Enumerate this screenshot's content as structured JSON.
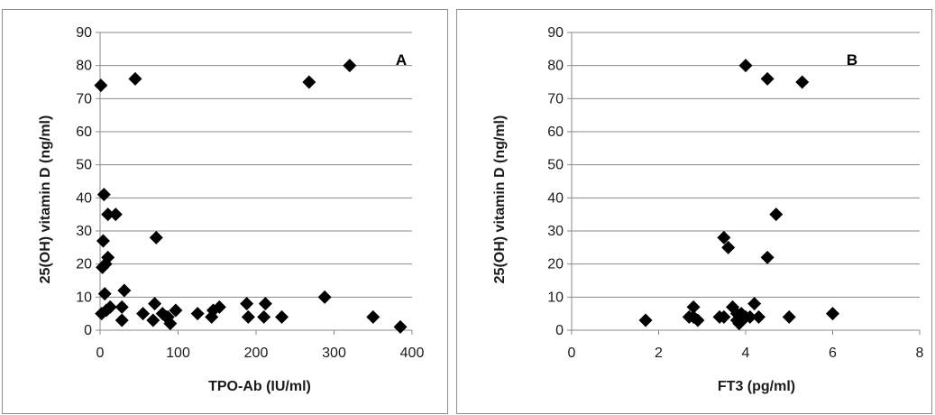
{
  "chart_data": [
    {
      "type": "scatter",
      "title": "",
      "panel_label": "A",
      "xlabel": "TPO-Ab (IU/ml)",
      "ylabel": "25(OH) vitamin D (ng/ml)",
      "xlim": [
        0,
        400
      ],
      "ylim": [
        0,
        90
      ],
      "xticks": [
        0,
        100,
        200,
        300,
        400
      ],
      "yticks": [
        0,
        10,
        20,
        30,
        40,
        50,
        60,
        70,
        80,
        90
      ],
      "grid": "horizontal",
      "marker": "diamond",
      "marker_color": "#000000",
      "series": [
        {
          "x": [
            1,
            2,
            3,
            4,
            5,
            6,
            7,
            8,
            10,
            10,
            13,
            20,
            28,
            28,
            31,
            45,
            55,
            68,
            70,
            72,
            80,
            85,
            87,
            90,
            97,
            125,
            143,
            145,
            153,
            188,
            190,
            210,
            212,
            233,
            268,
            288,
            320,
            350,
            385
          ],
          "y": [
            74,
            5,
            19,
            27,
            41,
            11,
            20,
            6,
            35,
            22,
            7,
            35,
            3,
            7,
            12,
            76,
            5,
            3,
            8,
            28,
            5,
            4,
            4,
            2,
            6,
            5,
            4,
            6,
            7,
            8,
            4,
            4,
            8,
            4,
            75,
            10,
            80,
            4,
            1
          ]
        }
      ]
    },
    {
      "type": "scatter",
      "title": "",
      "panel_label": "B",
      "xlabel": "FT3 (pg/ml)",
      "ylabel": "25(OH) vitamin D (ng/ml)",
      "xlim": [
        0,
        8
      ],
      "ylim": [
        0,
        90
      ],
      "xticks": [
        0,
        2,
        4,
        6,
        8
      ],
      "yticks": [
        0,
        10,
        20,
        30,
        40,
        50,
        60,
        70,
        80,
        90
      ],
      "grid": "horizontal",
      "marker": "diamond",
      "marker_color": "#000000",
      "series": [
        {
          "x": [
            1.7,
            2.7,
            2.8,
            2.8,
            2.9,
            3.4,
            3.5,
            3.5,
            3.6,
            3.7,
            3.8,
            3.8,
            3.85,
            3.9,
            4.0,
            4.0,
            4.1,
            4.2,
            4.3,
            4.5,
            4.5,
            4.7,
            5.0,
            5.3,
            6.0
          ],
          "y": [
            3,
            4,
            7,
            4,
            3,
            4,
            4,
            28,
            25,
            7,
            5,
            3,
            2,
            5,
            4,
            80,
            4,
            8,
            4,
            76,
            22,
            35,
            4,
            75,
            5
          ]
        }
      ]
    }
  ]
}
